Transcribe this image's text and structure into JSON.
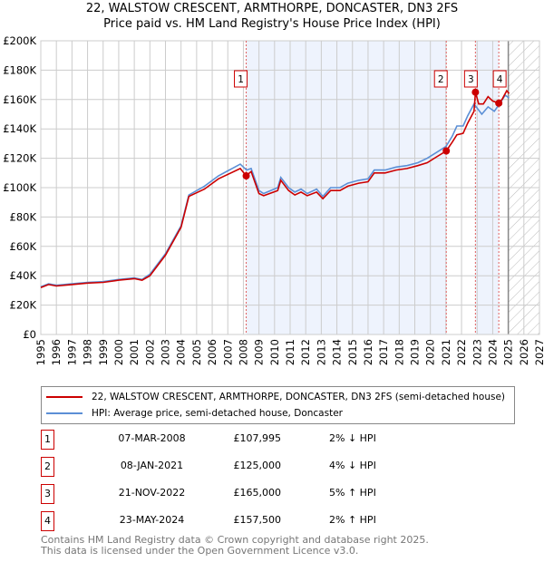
{
  "title_line1": "22, WALSTOW CRESCENT, ARMTHORPE, DONCASTER, DN3 2FS",
  "title_line2": "Price paid vs. HM Land Registry's House Price Index (HPI)",
  "chart_data": {
    "type": "line",
    "xlim": [
      1995,
      2027
    ],
    "ylim": [
      0,
      200000
    ],
    "yticks": [
      0,
      20000,
      40000,
      60000,
      80000,
      100000,
      120000,
      140000,
      160000,
      180000,
      200000
    ],
    "ytick_labels": [
      "£0",
      "£20K",
      "£40K",
      "£60K",
      "£80K",
      "£100K",
      "£120K",
      "£140K",
      "£160K",
      "£180K",
      "£200K"
    ],
    "xticks": [
      "1995",
      "1996",
      "1997",
      "1998",
      "1999",
      "2000",
      "2001",
      "2002",
      "2003",
      "2004",
      "2005",
      "2006",
      "2007",
      "2008",
      "2009",
      "2010",
      "2011",
      "2012",
      "2013",
      "2014",
      "2015",
      "2016",
      "2017",
      "2018",
      "2019",
      "2020",
      "2021",
      "2022",
      "2023",
      "2024",
      "2025",
      "2026",
      "2027"
    ],
    "grid": true,
    "shaded_ranges": [
      [
        2008.18,
        2021.02
      ],
      [
        2022.89,
        2024.39
      ]
    ],
    "forecast_hatch_from": 2025.0,
    "series": [
      {
        "name": "22, WALSTOW CRESCENT, ARMTHORPE, DONCASTER, DN3 2FS (semi-detached house)",
        "color": "#cc0000",
        "x": [
          1995,
          1995.5,
          1996,
          1997,
          1998,
          1999,
          2000,
          2001,
          2001.5,
          2002,
          2003,
          2004,
          2004.5,
          2005.5,
          2006.4,
          2007.8,
          2008.18,
          2008.5,
          2009,
          2009.3,
          2010.2,
          2010.4,
          2010.9,
          2011.3,
          2011.7,
          2012.1,
          2012.7,
          2013.1,
          2013.6,
          2014.2,
          2014.7,
          2015.4,
          2016,
          2016.4,
          2017.1,
          2017.8,
          2018.5,
          2019.2,
          2019.8,
          2020.4,
          2021.02,
          2021.4,
          2021.7,
          2022.1,
          2022.4,
          2022.8,
          2022.89,
          2023.1,
          2023.4,
          2023.7,
          2024.0,
          2024.39,
          2024.6,
          2024.9,
          2025.05
        ],
        "y": [
          32000,
          34000,
          33000,
          34000,
          35000,
          35500,
          37000,
          38000,
          37000,
          40000,
          54000,
          73000,
          94000,
          99000,
          106000,
          113000,
          107995,
          111000,
          96000,
          94500,
          98000,
          105000,
          98000,
          95000,
          97000,
          94500,
          97000,
          92500,
          98000,
          98000,
          101000,
          103000,
          104000,
          110000,
          110000,
          112000,
          113000,
          115000,
          117000,
          121000,
          125000,
          131000,
          136000,
          137000,
          144000,
          152000,
          165000,
          157000,
          157000,
          162000,
          159000,
          157500,
          160000,
          166000,
          164000
        ]
      },
      {
        "name": "HPI: Average price, semi-detached house, Doncaster",
        "color": "#5b8fd6",
        "x": [
          1995,
          1995.5,
          1996,
          1997,
          1998,
          1999,
          2000,
          2001,
          2001.5,
          2002,
          2003,
          2004,
          2004.5,
          2005.5,
          2006.4,
          2007.8,
          2008.2,
          2008.5,
          2009,
          2009.3,
          2010.2,
          2010.4,
          2010.9,
          2011.3,
          2011.7,
          2012.1,
          2012.7,
          2013.1,
          2013.6,
          2014.2,
          2014.7,
          2015.4,
          2016,
          2016.4,
          2017.1,
          2017.8,
          2018.5,
          2019.2,
          2019.8,
          2020.4,
          2021,
          2021.4,
          2021.7,
          2022.1,
          2022.4,
          2022.8,
          2023.3,
          2023.7,
          2024.1,
          2024.5,
          2024.8,
          2025.05
        ],
        "y": [
          32500,
          34500,
          33500,
          34500,
          35500,
          36000,
          37500,
          38500,
          37500,
          41000,
          55000,
          74000,
          95000,
          101000,
          108000,
          116000,
          112000,
          113000,
          98000,
          96000,
          100000,
          107000,
          100000,
          97000,
          99000,
          96000,
          99000,
          94000,
          100000,
          100000,
          103000,
          105000,
          106000,
          112000,
          112000,
          114000,
          115000,
          117000,
          120000,
          124000,
          128000,
          135000,
          142000,
          142000,
          149000,
          157000,
          150000,
          155000,
          152000,
          158000,
          163000,
          161000
        ]
      }
    ],
    "sales": [
      {
        "n": "1",
        "x": 2008.18,
        "y": 107995
      },
      {
        "n": "2",
        "x": 2021.02,
        "y": 125000
      },
      {
        "n": "3",
        "x": 2022.89,
        "y": 165000
      },
      {
        "n": "4",
        "x": 2024.39,
        "y": 157500
      }
    ]
  },
  "legend": {
    "property": "22, WALSTOW CRESCENT, ARMTHORPE, DONCASTER, DN3 2FS (semi-detached house)",
    "hpi": "HPI: Average price, semi-detached house, Doncaster"
  },
  "transactions": [
    {
      "n": "1",
      "date": "07-MAR-2008",
      "price": "£107,995",
      "hpi": "2% ↓ HPI"
    },
    {
      "n": "2",
      "date": "08-JAN-2021",
      "price": "£125,000",
      "hpi": "4% ↓ HPI"
    },
    {
      "n": "3",
      "date": "21-NOV-2022",
      "price": "£165,000",
      "hpi": "5% ↑ HPI"
    },
    {
      "n": "4",
      "date": "23-MAY-2024",
      "price": "£157,500",
      "hpi": "2% ↑ HPI"
    }
  ],
  "footer": {
    "line1": "Contains HM Land Registry data © Crown copyright and database right 2025.",
    "line2": "This data is licensed under the Open Government Licence v3.0."
  }
}
